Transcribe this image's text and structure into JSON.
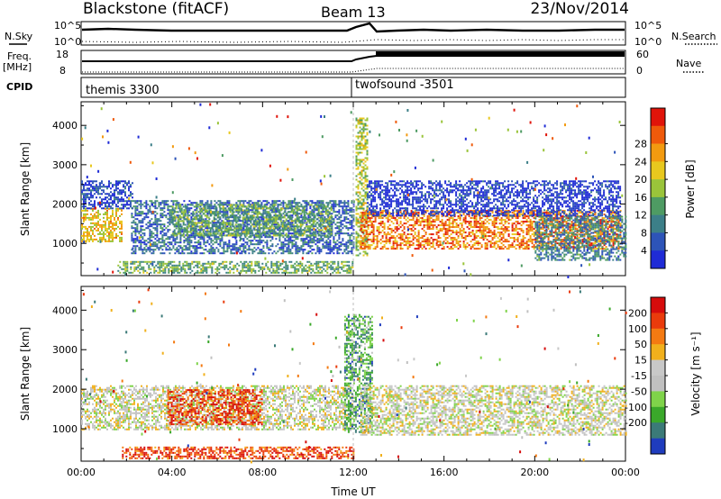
{
  "header": {
    "title": "Blackstone (fitACF)",
    "beam": "Beam 13",
    "date": "23/Nov/2014"
  },
  "panel_labels": {
    "nsky": "N.Sky",
    "freq_line1": "Freq.",
    "freq_line2": "[MHz]",
    "cpid": "CPID",
    "nsearch": "N.Search",
    "nave": "Nave",
    "noise_tick_top": "10^5",
    "noise_tick_bottom": "10^0",
    "freq_tick_top": "18",
    "freq_tick_bottom": "8",
    "nave_tick_top": "60",
    "nave_tick_bottom": "0"
  },
  "cpid_labels": [
    {
      "start": "00:00",
      "text": "themis 3300"
    },
    {
      "start": "12:00",
      "text": "twofsound -3501"
    }
  ],
  "chart_data": [
    {
      "type": "heatmap",
      "name": "power",
      "ylabel": "Slant Range [km]",
      "ylim": [
        180,
        4600
      ],
      "yticks": [
        1000,
        2000,
        3000,
        4000
      ],
      "xlim_hours": [
        0,
        24
      ],
      "colorbar_label": "Power [dB]",
      "colorbar_ticks": [
        "4",
        "8",
        "12",
        "16",
        "20",
        "24",
        "28"
      ],
      "colorbar_colors": [
        "#1f2bd6",
        "#2d54b8",
        "#3c7f88",
        "#4e9b63",
        "#9ac43a",
        "#e8c81e",
        "#f29a10",
        "#ef5a0b",
        "#e0140a"
      ],
      "echo_regions": [
        {
          "t": [
            0.0,
            1.8
          ],
          "r": [
            1050,
            1900
          ],
          "level": 0.62
        },
        {
          "t": [
            0.0,
            2.3
          ],
          "r": [
            1900,
            2600
          ],
          "level": 0.12
        },
        {
          "t": [
            2.2,
            12.0
          ],
          "r": [
            750,
            2100
          ],
          "level": 0.22
        },
        {
          "t": [
            4.0,
            11.0
          ],
          "r": [
            1200,
            2000
          ],
          "level": 0.4
        },
        {
          "t": [
            1.6,
            12.0
          ],
          "r": [
            250,
            550
          ],
          "level": 0.4
        },
        {
          "t": [
            12.1,
            12.6
          ],
          "r": [
            700,
            4200
          ],
          "level": 0.52
        },
        {
          "t": [
            12.3,
            23.8
          ],
          "r": [
            850,
            1850
          ],
          "level": 0.78
        },
        {
          "t": [
            12.6,
            23.8
          ],
          "r": [
            1700,
            2600
          ],
          "level": 0.08
        },
        {
          "t": [
            20.0,
            24.0
          ],
          "r": [
            600,
            1700
          ],
          "level": 0.28
        }
      ]
    },
    {
      "type": "heatmap",
      "name": "velocity",
      "ylabel": "Slant Range [km]",
      "ylim": [
        180,
        4600
      ],
      "yticks": [
        1000,
        2000,
        3000,
        4000
      ],
      "xlim_hours": [
        0,
        24
      ],
      "xticks": [
        "00:00",
        "04:00",
        "08:00",
        "12:00",
        "16:00",
        "20:00",
        "00:00"
      ],
      "xlabel": "Time UT",
      "colorbar_label": "Velocity [m s⁻¹]",
      "colorbar_ticks": [
        "200",
        "100",
        "50",
        "15",
        "-15",
        "-50",
        "-100",
        "-200"
      ],
      "colorbar_colors": [
        "#1f3cbd",
        "#3b7a78",
        "#3aa82a",
        "#7fd34a",
        "#c0c0c0",
        "#c8c8c8",
        "#f1b01c",
        "#f47a12",
        "#ea3b0c",
        "#d60c0c"
      ],
      "echo_regions": [
        {
          "t": [
            0.0,
            12.0
          ],
          "r": [
            1000,
            2100
          ],
          "level": 0.5
        },
        {
          "t": [
            3.8,
            8.0
          ],
          "r": [
            1100,
            2000
          ],
          "level": 0.85
        },
        {
          "t": [
            1.8,
            12.0
          ],
          "r": [
            250,
            550
          ],
          "level": 0.85
        },
        {
          "t": [
            11.6,
            12.8
          ],
          "r": [
            900,
            3900
          ],
          "level": 0.25
        },
        {
          "t": [
            12.3,
            24.0
          ],
          "r": [
            850,
            2100
          ],
          "level": 0.5
        }
      ]
    }
  ]
}
